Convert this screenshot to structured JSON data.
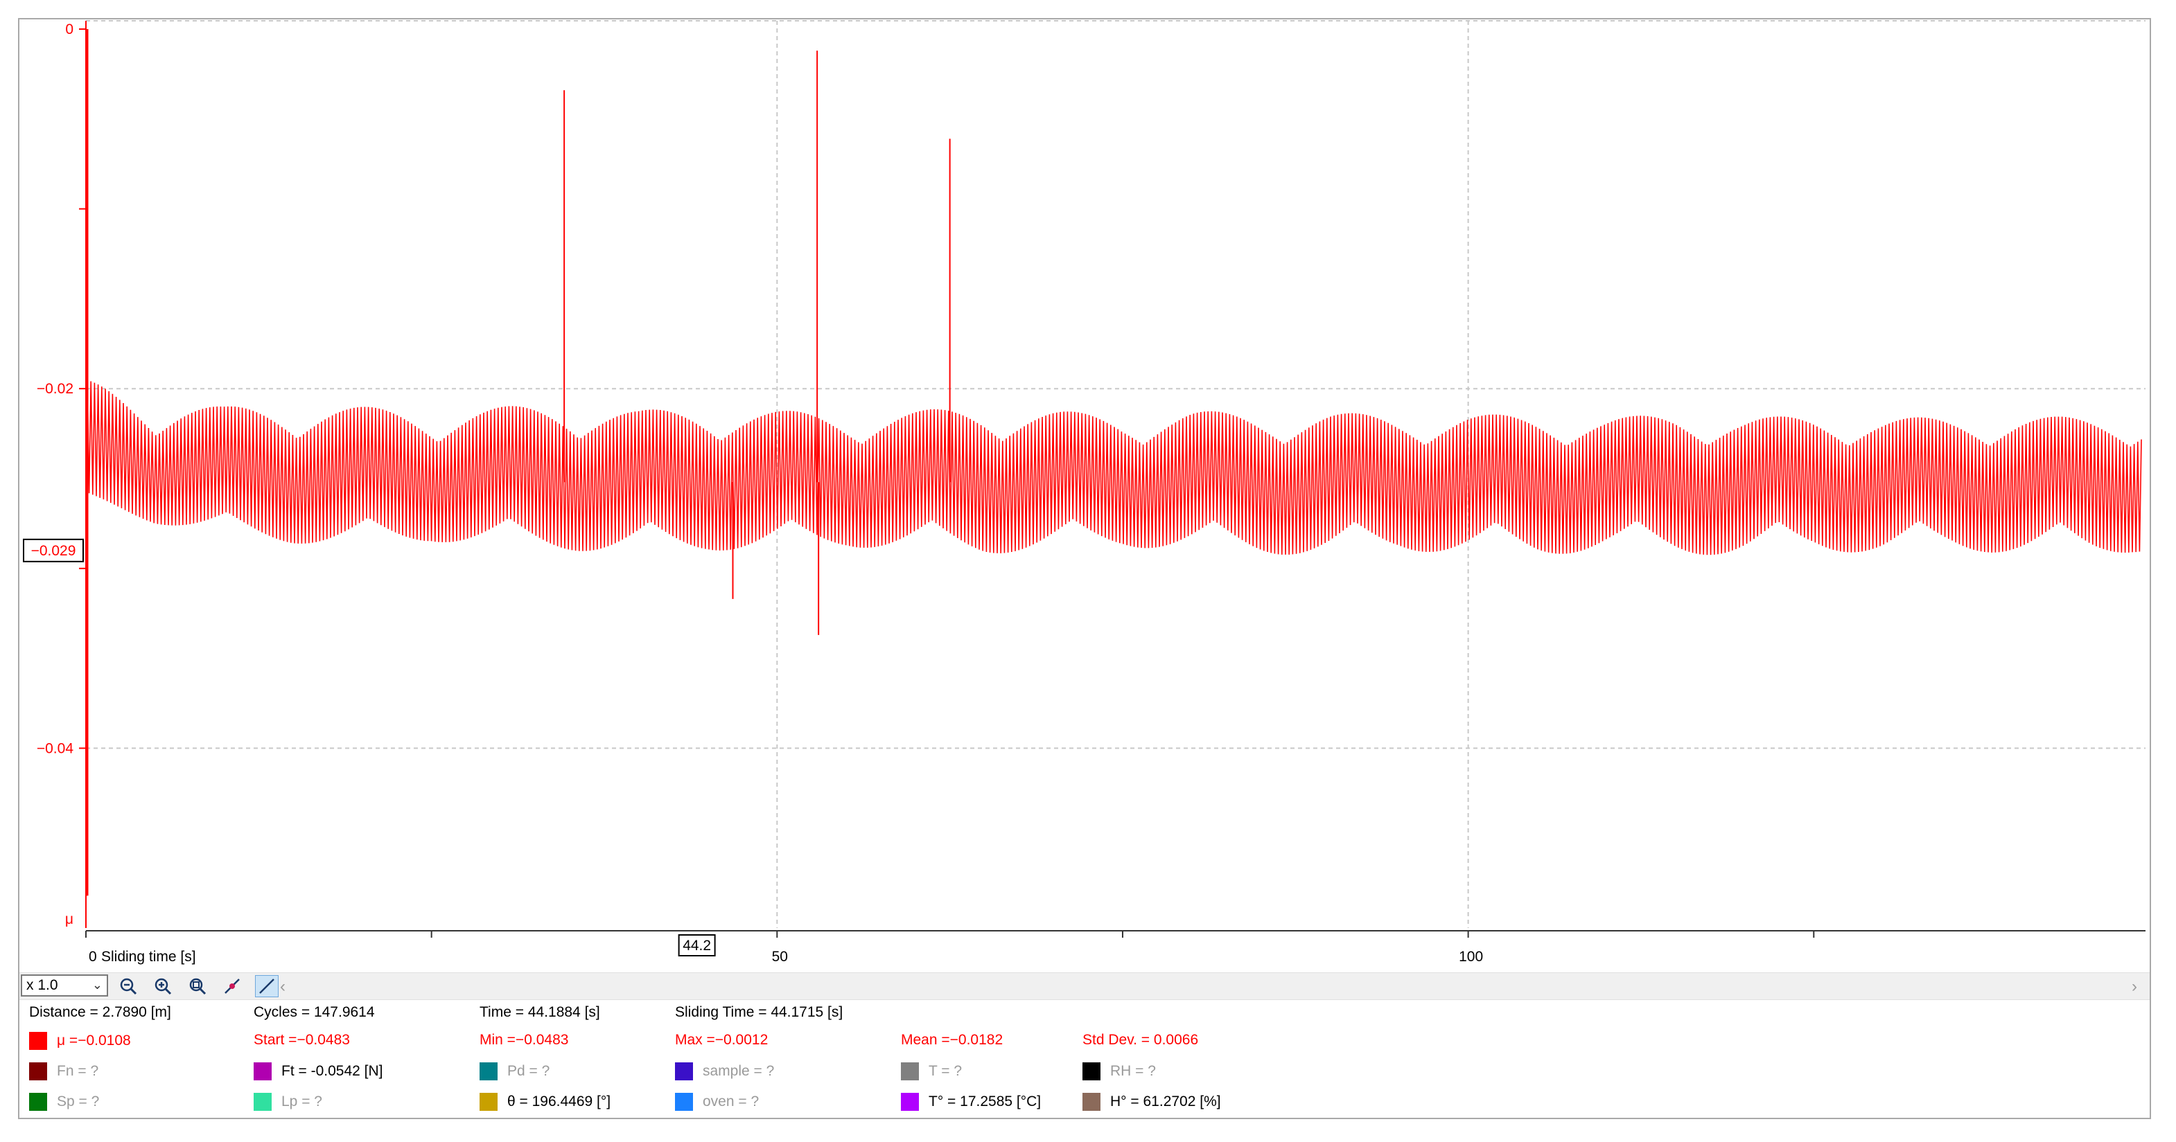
{
  "chart_data": {
    "type": "line",
    "xlabel": "Sliding time [s]",
    "ylabel": "μ",
    "xlim": [
      0,
      149
    ],
    "ylim": [
      -0.05,
      0
    ],
    "x_ticks": [
      0,
      50,
      100
    ],
    "x_tick_labels": [
      "0",
      "50",
      "100"
    ],
    "y_ticks": [
      0,
      -0.02,
      -0.04
    ],
    "y_tick_labels": [
      "0",
      "−0.02",
      "−0.04"
    ],
    "grid": true,
    "series": [
      {
        "color": "#ff0000",
        "description": "oscillating friction coefficient between about -0.02 and -0.029, mean -0.0182",
        "x": [
          0,
          5,
          10,
          15,
          20,
          25,
          30,
          35,
          40,
          45,
          50,
          55,
          60,
          65,
          70,
          75,
          80,
          85,
          90,
          95,
          100,
          105,
          110,
          115,
          120,
          125,
          130,
          135,
          140,
          145,
          148
        ],
        "y_upper": [
          -0.0195,
          -0.0205,
          -0.021,
          -0.0208,
          -0.021,
          -0.0212,
          -0.021,
          -0.0208,
          -0.0212,
          -0.021,
          -0.0212,
          -0.0214,
          -0.0212,
          -0.021,
          -0.0212,
          -0.0215,
          -0.0212,
          -0.0214,
          -0.0213,
          -0.0215,
          -0.0214,
          -0.0215,
          -0.0216,
          -0.0214,
          -0.0216,
          -0.0215,
          -0.0216,
          -0.0216,
          -0.0215,
          -0.0216,
          -0.0216
        ],
        "y_lower": [
          -0.0262,
          -0.0275,
          -0.0282,
          -0.0286,
          -0.0288,
          -0.0285,
          -0.0288,
          -0.029,
          -0.0292,
          -0.029,
          -0.029,
          -0.0288,
          -0.029,
          -0.0292,
          -0.029,
          -0.0288,
          -0.029,
          -0.0292,
          -0.0293,
          -0.029,
          -0.0292,
          -0.0293,
          -0.029,
          -0.0292,
          -0.0293,
          -0.029,
          -0.0292,
          -0.029,
          -0.0292,
          -0.0293,
          -0.0291
        ],
        "spikes": [
          {
            "x": 0.1,
            "y": -0.0482
          },
          {
            "x": 34.6,
            "y": -0.0034
          },
          {
            "x": 46.8,
            "y": -0.0317
          },
          {
            "x": 52.9,
            "y": -0.0012
          },
          {
            "x": 53.0,
            "y": -0.0337
          },
          {
            "x": 62.5,
            "y": -0.0061
          }
        ]
      }
    ],
    "cursor_value_label": "−0.029",
    "cursor_time_label": "44.2"
  },
  "toolbar": {
    "zoom_value": "x 1.0",
    "scroll_left": "‹",
    "scroll_right": "›"
  },
  "stats": {
    "row1": [
      "Distance = 2.7890 [m]",
      "Cycles = 147.9614",
      "Time = 44.1884 [s]",
      "Sliding Time = 44.1715 [s]"
    ],
    "row2": [
      "μ =−0.0108",
      "Start =−0.0483",
      "Min =−0.0483",
      "Max =−0.0012",
      "Mean =−0.0182",
      "Std Dev. = 0.0066"
    ],
    "row3": [
      "Fn = ?",
      "Ft = -0.0542 [N]",
      "Pd = ?",
      "sample = ?",
      "T = ?",
      "RH = ?"
    ],
    "row4": [
      "Sp = ?",
      "Lp = ?",
      "θ = 196.4469 [°]",
      "oven = ?",
      "T° = 17.2585 [°C]",
      "H° = 61.2702 [%]"
    ]
  },
  "colors": {
    "mu": "#ff0000",
    "fn": "#800000",
    "ft": "#b000b0",
    "pd": "#00808a",
    "sample": "#3a10c8",
    "t": "#808080",
    "rh": "#000000",
    "sp": "#00780a",
    "lp": "#30e0a0",
    "theta": "#c8a000",
    "oven": "#1a80ff",
    "tdeg": "#b000ff",
    "hdeg": "#8b6a5a"
  }
}
